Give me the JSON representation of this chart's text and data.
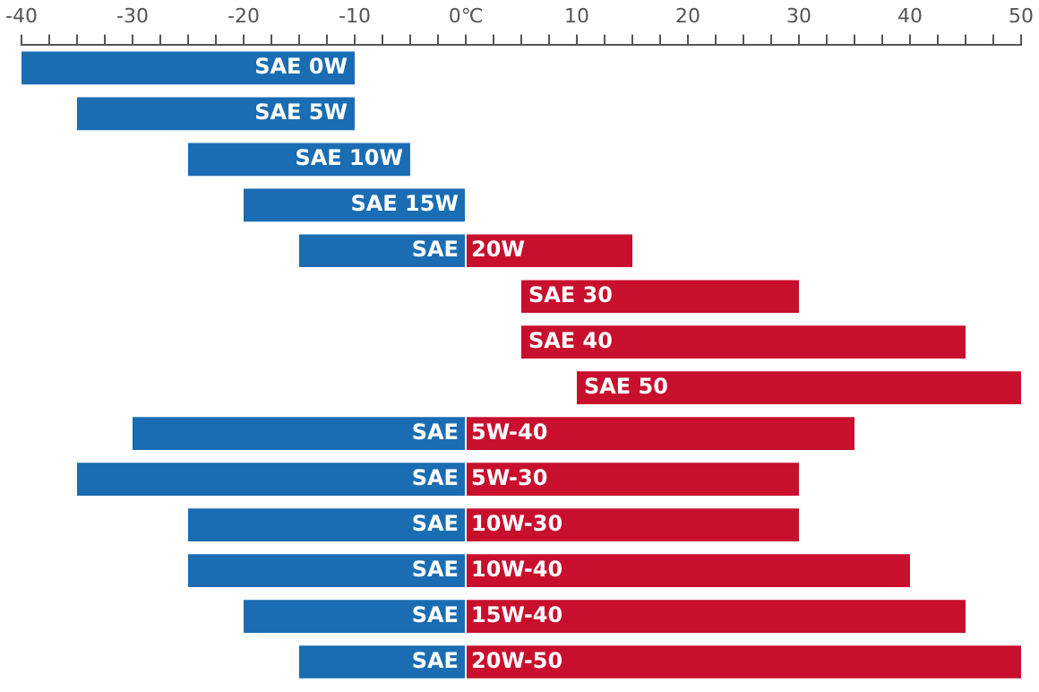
{
  "chart_data": {
    "type": "bar",
    "orientation": "horizontal",
    "legend": false,
    "grid": false,
    "tick_labels": "x",
    "categories": [
      "SAE 0W",
      "SAE 5W",
      "SAE 10W",
      "SAE 15W",
      "SAE 20W",
      "SAE 30",
      "SAE 40",
      "SAE 50",
      "SAE 5W-40",
      "SAE 5W-30",
      "SAE 10W-30",
      "SAE 10W-40",
      "SAE 15W-40",
      "SAE 20W-50"
    ],
    "xlim": [
      -40,
      50
    ],
    "xticks": [
      -40,
      {
        "value": -37.5,
        "label": null
      },
      {
        "value": -35,
        "label": null
      },
      {
        "value": -32.5,
        "label": null
      },
      -30,
      {
        "value": -27.5,
        "label": null
      },
      {
        "value": -25,
        "label": null
      },
      {
        "value": -22.5,
        "label": null
      },
      -20,
      {
        "value": -17.5,
        "label": null
      },
      {
        "value": -15,
        "label": null
      },
      {
        "value": -12.5,
        "label": null
      },
      -10,
      {
        "value": -7.5,
        "label": null
      },
      {
        "value": -5,
        "label": null
      },
      {
        "value": -2.5,
        "label": null
      },
      {
        "value": 0,
        "label": "0℃"
      },
      {
        "value": 2.5,
        "label": null
      },
      {
        "value": 5,
        "label": null
      },
      {
        "value": 7.5,
        "label": null
      },
      10,
      {
        "value": 12.5,
        "label": null
      },
      {
        "value": 15,
        "label": null
      },
      {
        "value": 17.5,
        "label": null
      },
      20,
      {
        "value": 22.5,
        "label": null
      },
      {
        "value": 25,
        "label": null
      },
      {
        "value": 27.5,
        "label": null
      },
      30,
      {
        "value": 32.5,
        "label": null
      },
      {
        "value": 35,
        "label": null
      },
      {
        "value": 37.5,
        "label": null
      },
      40,
      {
        "value": 42.5,
        "label": null
      },
      {
        "value": 45,
        "label": null
      },
      {
        "value": 47.5,
        "label": null
      },
      50
    ],
    "series": [
      {
        "color": "#1a6db3",
        "base": [
          -40,
          -35,
          -25,
          -20,
          -15,
          null,
          null,
          null,
          -30,
          -35,
          -25,
          -25,
          -20,
          -15
        ],
        "values": [
          30,
          25,
          20,
          20,
          15,
          null,
          null,
          null,
          30,
          35,
          25,
          25,
          20,
          15
        ]
      },
      {
        "color": "#c8102e",
        "base": [
          null,
          null,
          null,
          null,
          0,
          5,
          5,
          10,
          0,
          0,
          0,
          0,
          0,
          0
        ],
        "values": [
          null,
          null,
          null,
          null,
          15,
          25,
          40,
          40,
          35,
          30,
          30,
          40,
          45,
          50
        ]
      }
    ]
  }
}
